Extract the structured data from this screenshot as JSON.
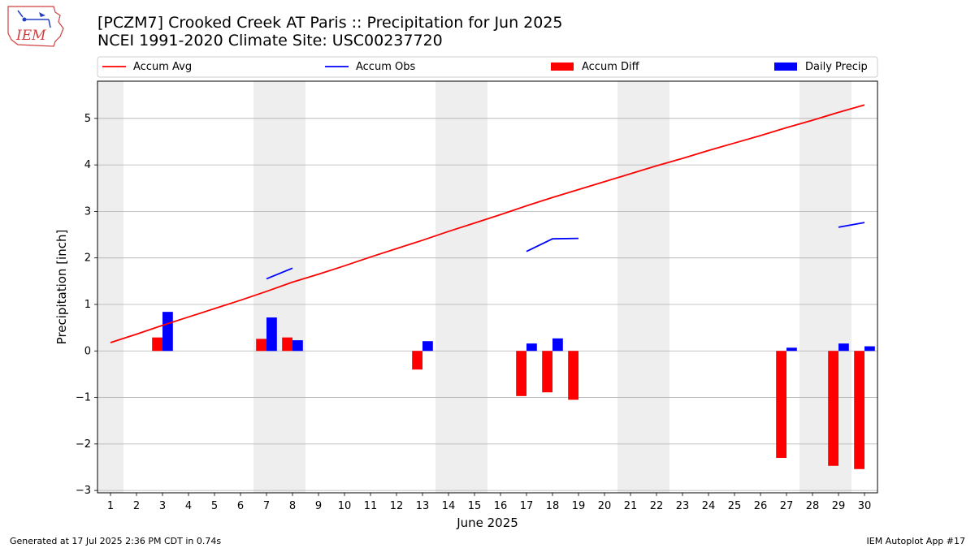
{
  "header": {
    "title_line1": "[PCZM7] Crooked Creek  AT Paris :: Precipitation for Jun 2025",
    "title_line2": "NCEI 1991-2020 Climate Site: USC00237720",
    "logo_text": "IEM"
  },
  "footer": {
    "left": "Generated at 17 Jul 2025 2:36 PM CDT in 0.74s",
    "right": "IEM Autoplot App #17"
  },
  "colors": {
    "accum_avg": "#ff0000",
    "accum_obs": "#0000ff",
    "accum_diff": "#ff0000",
    "daily_precip": "#0000ff",
    "weekend_shade": "#eeeeee",
    "grid": "#b0b0b0"
  },
  "chart_data": {
    "type": "bar",
    "xlabel": "June 2025",
    "ylabel": "Precipitation [inch]",
    "xlim": [
      0.5,
      30.5
    ],
    "ylim": [
      -3.05,
      5.8
    ],
    "yticks": [
      -3,
      -2,
      -1,
      0,
      1,
      2,
      3,
      4,
      5
    ],
    "ytick_labels": [
      "−3",
      "−2",
      "−1",
      "0",
      "1",
      "2",
      "3",
      "4",
      "5"
    ],
    "days": [
      1,
      2,
      3,
      4,
      5,
      6,
      7,
      8,
      9,
      10,
      11,
      12,
      13,
      14,
      15,
      16,
      17,
      18,
      19,
      20,
      21,
      22,
      23,
      24,
      25,
      26,
      27,
      28,
      29,
      30
    ],
    "weekend_shading": [
      [
        0.5,
        1.5
      ],
      [
        6.5,
        8.5
      ],
      [
        13.5,
        15.5
      ],
      [
        20.5,
        22.5
      ],
      [
        27.5,
        29.5
      ]
    ],
    "grid": "horizontal",
    "legend_placement": "top-outside",
    "legend": [
      "Accum Avg",
      "Accum Obs",
      "Accum Diff",
      "Daily Precip"
    ],
    "series": [
      {
        "name": "Accum Avg",
        "kind": "line",
        "values": [
          0.18,
          0.36,
          0.55,
          0.73,
          0.91,
          1.09,
          1.28,
          1.48,
          1.65,
          1.83,
          2.02,
          2.2,
          2.38,
          2.57,
          2.75,
          2.93,
          3.12,
          3.3,
          3.47,
          3.64,
          3.81,
          3.98,
          4.14,
          4.31,
          4.47,
          4.63,
          4.8,
          4.96,
          5.13,
          5.29
        ]
      },
      {
        "name": "Accum Obs",
        "kind": "line",
        "values": [
          null,
          null,
          null,
          null,
          null,
          null,
          1.55,
          1.78,
          null,
          null,
          null,
          null,
          null,
          null,
          null,
          null,
          2.14,
          2.41,
          2.42,
          null,
          null,
          null,
          null,
          null,
          null,
          null,
          null,
          null,
          2.66,
          2.76
        ]
      },
      {
        "name": "Accum Diff",
        "kind": "bar",
        "values": [
          0,
          0,
          0.29,
          0,
          0,
          0,
          0.26,
          0.29,
          0,
          0,
          0,
          0,
          -0.4,
          0,
          0,
          0,
          -0.97,
          -0.89,
          -1.05,
          0,
          0,
          0,
          0,
          0,
          0,
          0,
          -2.3,
          0,
          -2.47,
          -2.54
        ]
      },
      {
        "name": "Daily Precip",
        "kind": "bar",
        "values": [
          0,
          0,
          0.84,
          0,
          0,
          0,
          0.72,
          0.23,
          0,
          0,
          0,
          0,
          0.21,
          0,
          0,
          0,
          0.16,
          0.27,
          0,
          0,
          0,
          0,
          0,
          0,
          0,
          0,
          0.07,
          0,
          0.16,
          0.1
        ]
      }
    ]
  }
}
